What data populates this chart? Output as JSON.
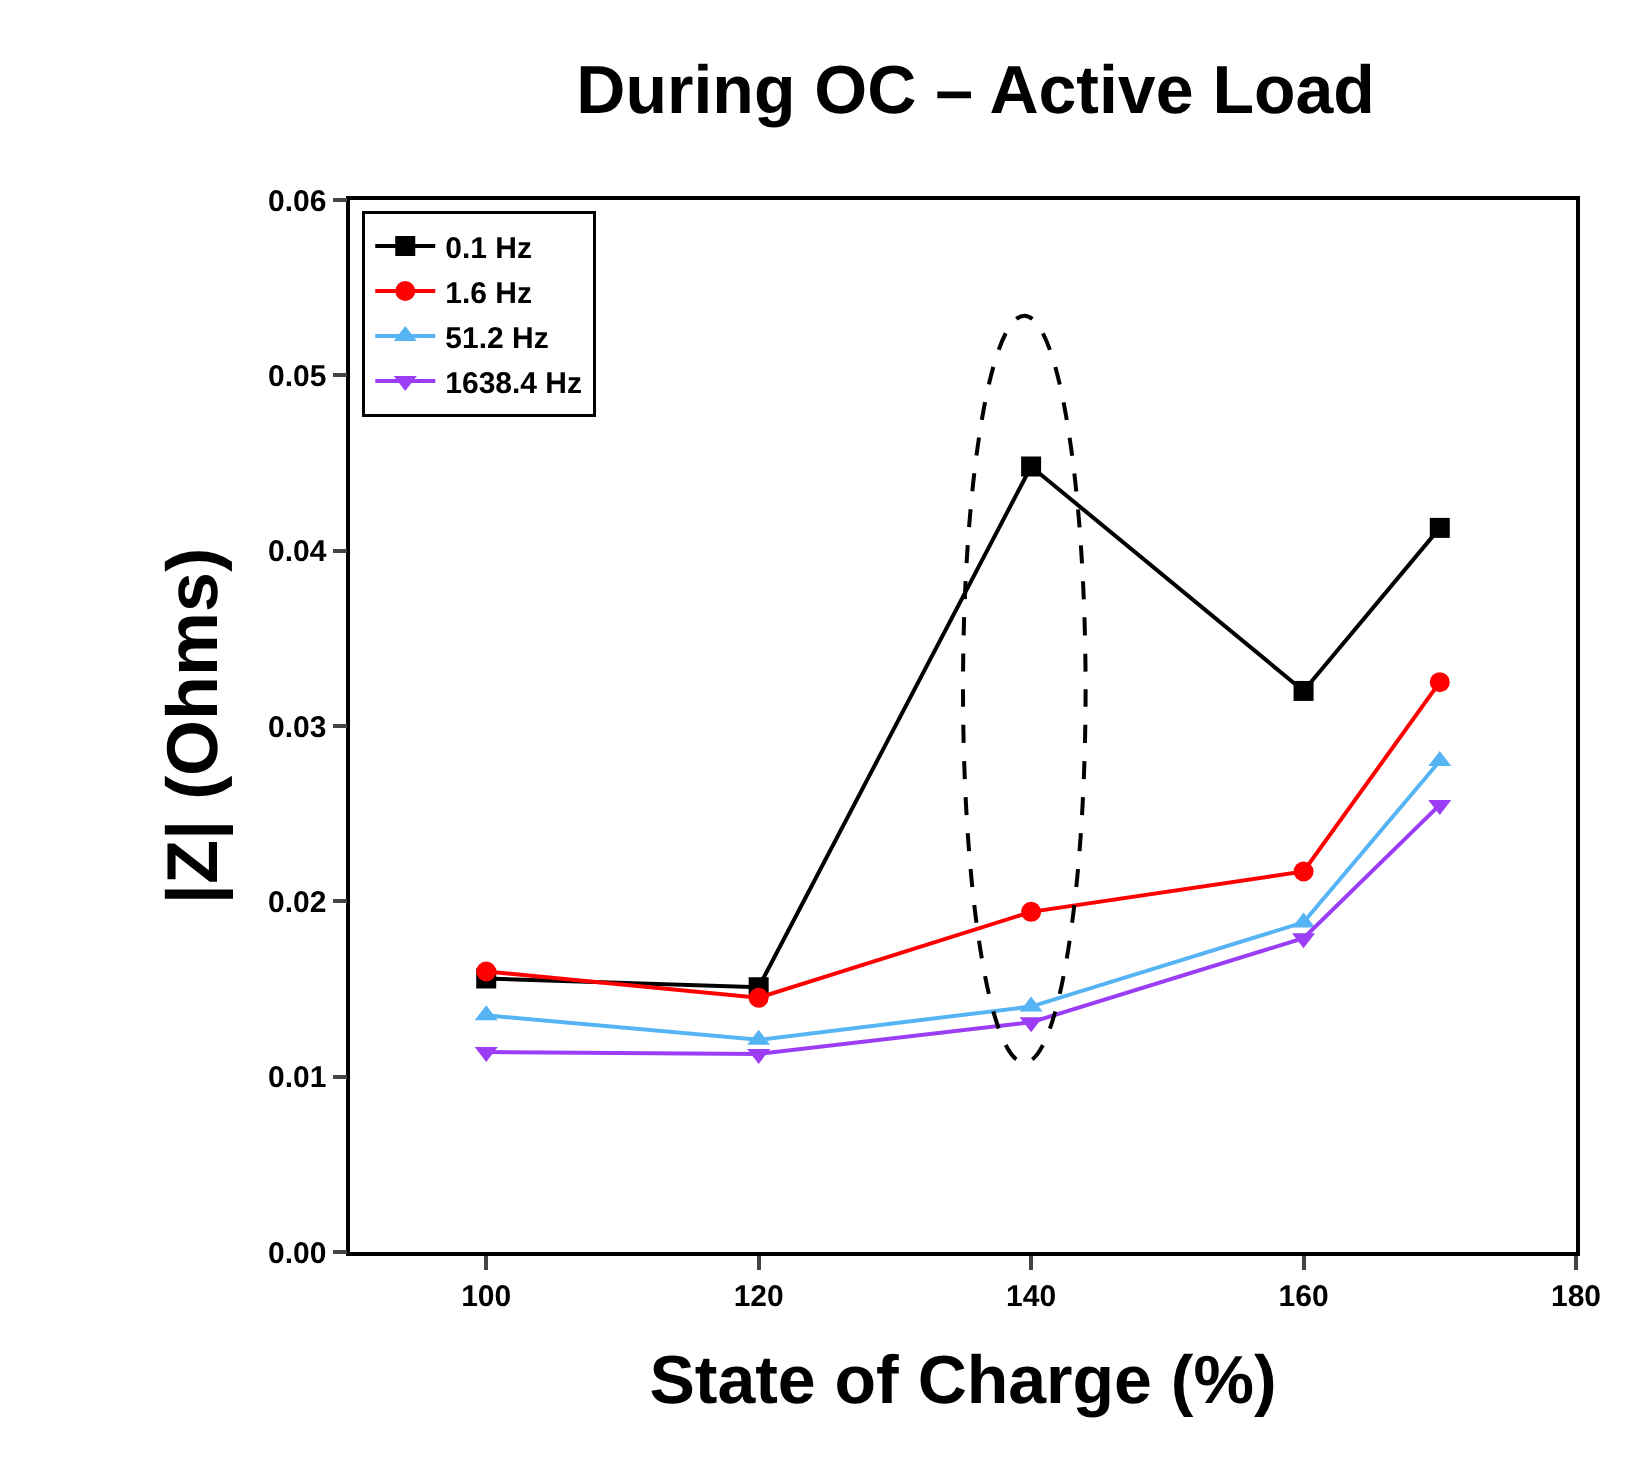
{
  "chart_data": {
    "type": "line",
    "title": "During OC – Active Load",
    "xlabel": "State of Charge (%)",
    "ylabel": "|Z| (Ohms)",
    "x": [
      100,
      120,
      140,
      160,
      170
    ],
    "series": [
      {
        "name": "0.1 Hz",
        "color": "#000000",
        "marker": "square",
        "values": [
          0.0156,
          0.0151,
          0.0448,
          0.032,
          0.0413
        ]
      },
      {
        "name": "1.6 Hz",
        "color": "#ff0000",
        "marker": "circle",
        "values": [
          0.016,
          0.0145,
          0.0194,
          0.0217,
          0.0325
        ]
      },
      {
        "name": "51.2 Hz",
        "color": "#56b4f5",
        "marker": "triangle",
        "values": [
          0.0135,
          0.0121,
          0.014,
          0.0188,
          0.028
        ]
      },
      {
        "name": "1638.4 Hz",
        "color": "#9b3df5",
        "marker": "triangle-down",
        "values": [
          0.0114,
          0.0113,
          0.0131,
          0.0179,
          0.0255
        ]
      }
    ],
    "xlim": [
      90,
      180
    ],
    "xticks": [
      100,
      120,
      140,
      160,
      180
    ],
    "ylim": [
      0,
      0.06
    ],
    "yticks": [
      {
        "value": 0,
        "label": "0.00"
      },
      {
        "value": 0.01,
        "label": "0.01"
      },
      {
        "value": 0.02,
        "label": "0.02"
      },
      {
        "value": 0.03,
        "label": "0.03"
      },
      {
        "value": 0.04,
        "label": "0.04"
      },
      {
        "value": 0.05,
        "label": "0.05"
      },
      {
        "value": 0.06,
        "label": "0.06"
      }
    ],
    "legend": "top left",
    "line_style": "solid"
  }
}
